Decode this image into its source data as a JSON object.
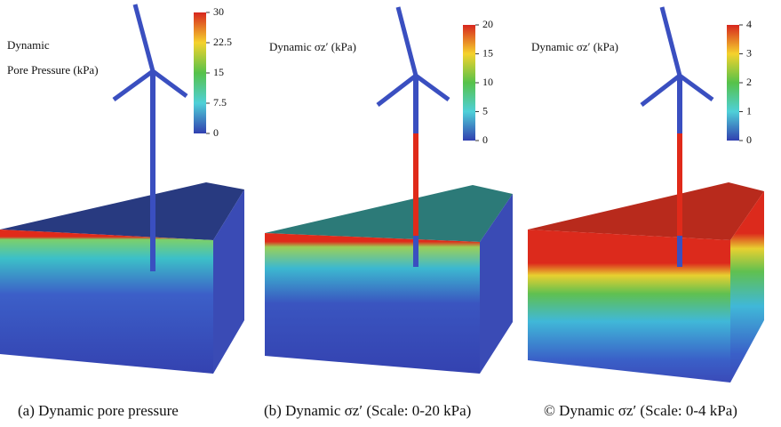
{
  "panels": [
    {
      "colorbar": {
        "label": [
          "Dynamic",
          "Pore Pressure (kPa)"
        ],
        "ticks": [
          30,
          22.5,
          15,
          7.5,
          0
        ]
      },
      "caption": "(a) Dynamic pore pressure"
    },
    {
      "colorbar": {
        "label": [
          "Dynamic σz′ (kPa)"
        ],
        "ticks": [
          20,
          15,
          10,
          5,
          0
        ]
      },
      "caption": "(b) Dynamic σz′  (Scale: 0-20 kPa)"
    },
    {
      "colorbar": {
        "label": [
          "Dynamic σz′ (kPa)"
        ],
        "ticks": [
          4,
          3,
          2,
          1,
          0
        ]
      },
      "caption": "© Dynamic σz′  (Scale: 0-4 kPa)"
    }
  ]
}
